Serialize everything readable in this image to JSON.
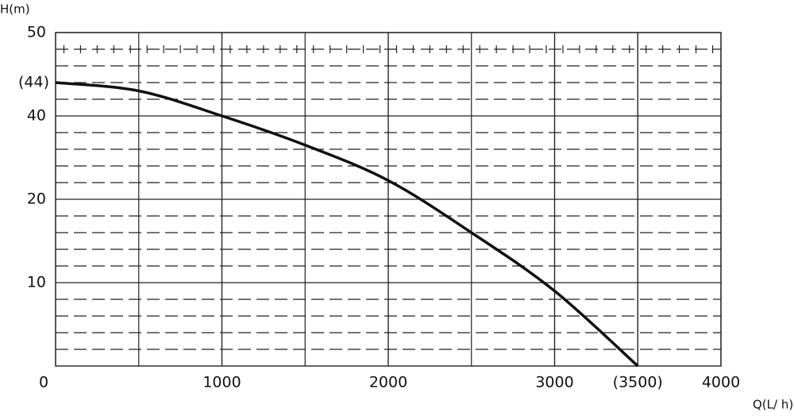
{
  "chart_data": {
    "type": "line",
    "y_axis_label": "H(m)",
    "x_axis_label": "Q(L/ h)",
    "x": [
      0,
      500,
      1000,
      1500,
      2000,
      2500,
      3000,
      3500
    ],
    "series": [
      {
        "color": "#111111",
        "values": [
          44,
          43,
          40,
          33,
          24.5,
          16,
          9,
          0
        ]
      }
    ],
    "xlim": [
      0,
      4000
    ],
    "xticks": [
      0,
      1000,
      2000,
      3000,
      {
        "value": 3500,
        "label": "(3500)"
      },
      4000
    ],
    "ylim": [
      0,
      50
    ],
    "yticks": [
      10,
      20,
      40,
      {
        "value": 44,
        "label": "(44)"
      },
      50
    ],
    "grid": true
  }
}
